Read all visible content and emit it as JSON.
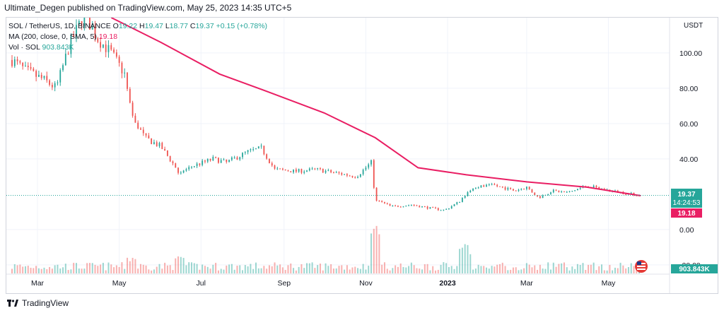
{
  "caption": "Ultimate_Degen published on TradingView.com, May 25, 2023 14:35 UTC+5",
  "legend": {
    "symbol": "SOL / TetherUS, 1D, BINANCE",
    "o_label": "O",
    "o": "19.22",
    "h_label": "H",
    "h": "19.47",
    "l_label": "L",
    "l": "18.77",
    "c_label": "C",
    "c": "19.37",
    "change": "+0.15 (+0.78%)",
    "ma_label": "MA (200, close, 0, SMA, 5)",
    "ma_value": "19.18",
    "vol_label": "Vol · SOL",
    "vol_value": "903.843K"
  },
  "currency": "USDT",
  "price_tag": {
    "price": "19.37",
    "countdown": "14:24:53"
  },
  "ma_tag": "19.18",
  "volume_tag": "903.843K",
  "brand": "TradingView",
  "colors": {
    "up": "#26a69a",
    "down": "#ef5350",
    "ma": "#e91e63"
  },
  "chart_data": {
    "type": "candlestick",
    "x_ticks": [
      "Mar",
      "May",
      "Jul",
      "Sep",
      "Nov",
      "2023",
      "Mar",
      "May"
    ],
    "y_ticks": [
      "100.00",
      "80.00",
      "60.00",
      "40.00",
      "0.00",
      "-20.00"
    ],
    "ylim": [
      -20,
      120
    ],
    "price_path": [
      [
        "2022-02-10",
        96
      ],
      [
        "2022-02-20",
        90
      ],
      [
        "2022-03-05",
        85
      ],
      [
        "2022-03-15",
        80
      ],
      [
        "2022-03-25",
        105
      ],
      [
        "2022-04-05",
        122
      ],
      [
        "2022-04-15",
        108
      ],
      [
        "2022-04-25",
        100
      ],
      [
        "2022-05-05",
        88
      ],
      [
        "2022-05-10",
        65
      ],
      [
        "2022-05-20",
        52
      ],
      [
        "2022-06-01",
        47
      ],
      [
        "2022-06-15",
        32
      ],
      [
        "2022-06-25",
        36
      ],
      [
        "2022-07-10",
        40
      ],
      [
        "2022-07-20",
        38
      ],
      [
        "2022-08-05",
        44
      ],
      [
        "2022-08-15",
        46
      ],
      [
        "2022-08-25",
        34
      ],
      [
        "2022-09-10",
        33
      ],
      [
        "2022-09-25",
        34
      ],
      [
        "2022-10-10",
        32
      ],
      [
        "2022-10-25",
        30
      ],
      [
        "2022-11-05",
        38
      ],
      [
        "2022-11-08",
        17
      ],
      [
        "2022-11-20",
        13
      ],
      [
        "2022-12-05",
        14
      ],
      [
        "2022-12-20",
        12
      ],
      [
        "2022-12-30",
        11
      ],
      [
        "2023-01-10",
        16
      ],
      [
        "2023-01-20",
        24
      ],
      [
        "2023-02-05",
        25
      ],
      [
        "2023-02-20",
        22
      ],
      [
        "2023-03-01",
        24
      ],
      [
        "2023-03-10",
        18
      ],
      [
        "2023-03-20",
        22
      ],
      [
        "2023-04-01",
        21
      ],
      [
        "2023-04-15",
        25
      ],
      [
        "2023-04-25",
        23
      ],
      [
        "2023-05-10",
        21
      ],
      [
        "2023-05-25",
        19.37
      ]
    ],
    "ma200_path": [
      [
        "2022-04-25",
        120
      ],
      [
        "2022-06-01",
        106
      ],
      [
        "2022-07-15",
        88
      ],
      [
        "2022-08-20",
        78
      ],
      [
        "2022-10-01",
        66
      ],
      [
        "2022-11-08",
        52
      ],
      [
        "2022-12-10",
        35
      ],
      [
        "2023-01-15",
        31
      ],
      [
        "2023-03-01",
        27
      ],
      [
        "2023-04-15",
        24
      ],
      [
        "2023-05-25",
        19.18
      ]
    ],
    "last": {
      "open": 19.22,
      "high": 19.47,
      "low": 18.77,
      "close": 19.37,
      "ma": 19.18,
      "volume": "903.843K"
    }
  }
}
